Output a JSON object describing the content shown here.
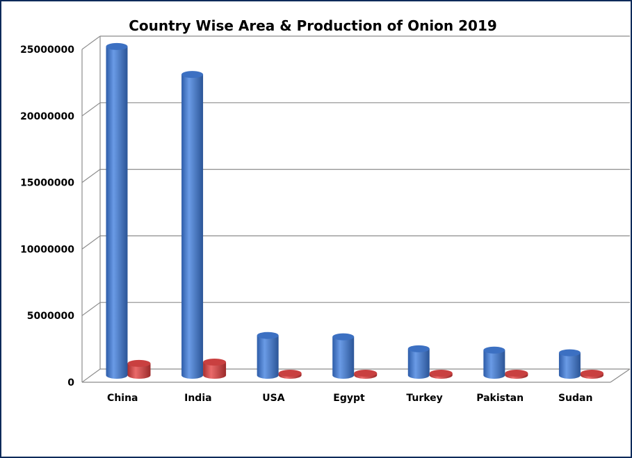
{
  "chart_data": {
    "type": "bar",
    "title": "Country Wise Area & Production of Onion 2019",
    "xlabel": "",
    "ylabel": "",
    "categories": [
      "China",
      "India",
      "USA",
      "Egypt",
      "Turkey",
      "Pakistan",
      "Sudan"
    ],
    "series": [
      {
        "values": [
          24900000,
          22800000,
          3200000,
          3100000,
          2200000,
          2100000,
          1900000
        ]
      },
      {
        "values": [
          1100000,
          1200000,
          100000,
          120000,
          100000,
          150000,
          120000
        ]
      }
    ],
    "ylim": [
      0,
      25000000
    ],
    "yticks": [
      "0",
      "5000000",
      "10000000",
      "15000000",
      "20000000",
      "25000000"
    ],
    "grid": true,
    "style": "3d-cylinder",
    "legend": "none"
  },
  "colors": {
    "series1": "#4a7fd4",
    "series2": "#d64545",
    "frame": "#0d2a5a",
    "grid": "#8c8c8c"
  }
}
